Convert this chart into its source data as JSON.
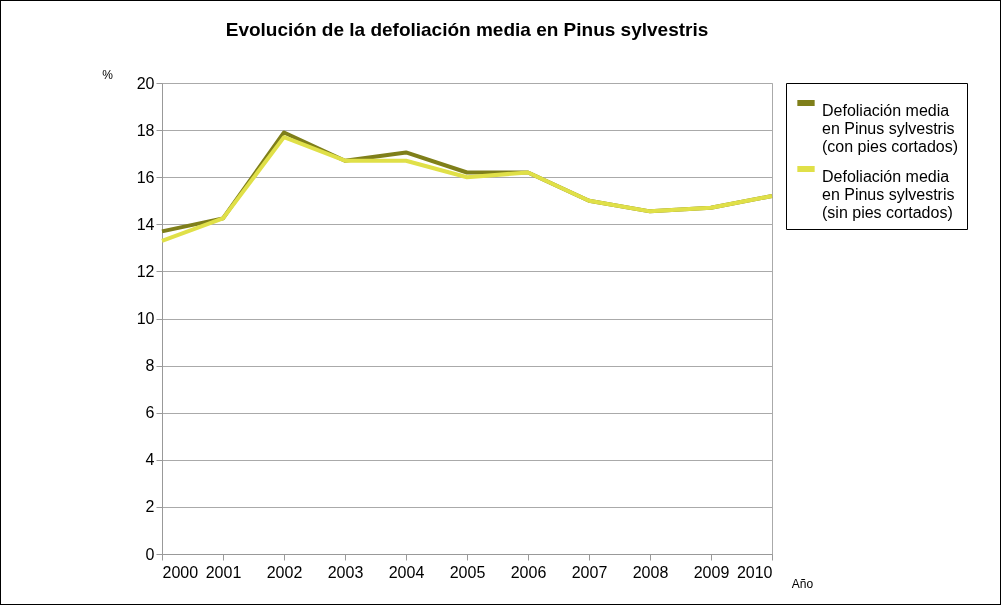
{
  "chart_data": {
    "type": "line",
    "title": "Evolución de la defoliación media en Pinus sylvestris",
    "xlabel": "Año",
    "ylabel": "%",
    "categories": [
      "2000",
      "2001",
      "2002",
      "2003",
      "2004",
      "2005",
      "2006",
      "2007",
      "2008",
      "2009",
      "2010"
    ],
    "series": [
      {
        "name": "Defoliación media en Pinus sylvestris (con pies cortados)",
        "color": "#7f7f1a",
        "values": [
          13.7,
          14.25,
          17.9,
          16.7,
          17.05,
          16.2,
          16.2,
          15.0,
          14.55,
          14.7,
          15.2
        ]
      },
      {
        "name": "Defoliación media en Pinus sylvestris (sin pies cortados)",
        "color": "#e0e048",
        "values": [
          13.3,
          14.25,
          17.7,
          16.7,
          16.7,
          16.0,
          16.2,
          15.0,
          14.55,
          14.7,
          15.2
        ]
      }
    ],
    "ylim": [
      0,
      20
    ],
    "yticks": [
      0,
      2,
      4,
      6,
      8,
      10,
      12,
      14,
      16,
      18,
      20
    ],
    "grid": "y",
    "legend": "right",
    "marker": "none",
    "line_style": "solid"
  }
}
